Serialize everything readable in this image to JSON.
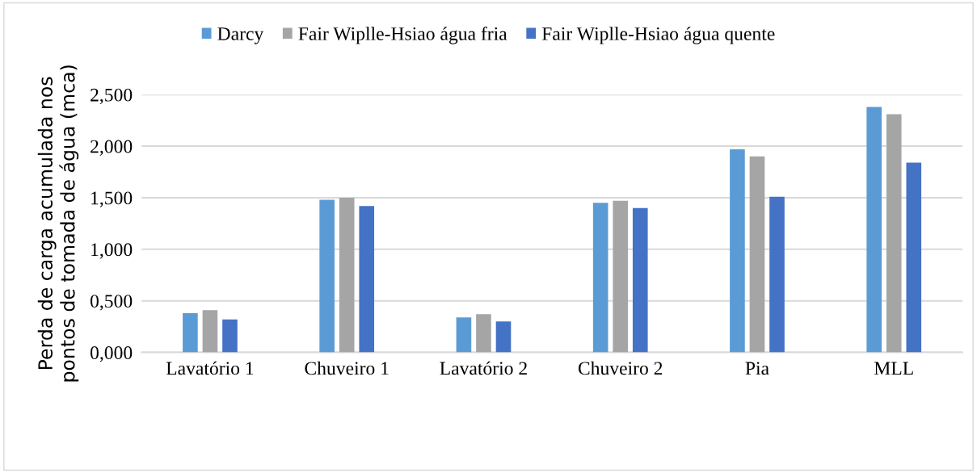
{
  "chart_data": {
    "type": "bar",
    "ylabel": "Perda de carga acumulada nos\npontos de tomada de água (mca)",
    "categories": [
      "Lavatório 1",
      "Chuveiro 1",
      "Lavatório 2",
      "Chuveiro 2",
      "Pia",
      "MLL"
    ],
    "series": [
      {
        "name": "Darcy",
        "color": "#5b9bd5",
        "values": [
          0.38,
          1.48,
          0.34,
          1.45,
          1.97,
          2.38
        ]
      },
      {
        "name": "Fair Wiplle-Hsiao água fria",
        "color": "#a5a5a5",
        "values": [
          0.41,
          1.5,
          0.37,
          1.47,
          1.9,
          2.31
        ]
      },
      {
        "name": "Fair Wiplle-Hsiao água quente",
        "color": "#4472c4",
        "values": [
          0.32,
          1.42,
          0.3,
          1.4,
          1.51,
          1.84
        ]
      }
    ],
    "ylim": [
      0,
      2.5
    ],
    "yticks": [
      {
        "value": 0,
        "label": "0,000"
      },
      {
        "value": 0.5,
        "label": "0,500"
      },
      {
        "value": 1,
        "label": "1,000"
      },
      {
        "value": 1.5,
        "label": "1,500"
      },
      {
        "value": 2,
        "label": "2,000"
      },
      {
        "value": 2.5,
        "label": "2,500"
      }
    ],
    "grid": "y",
    "legend": "top"
  }
}
